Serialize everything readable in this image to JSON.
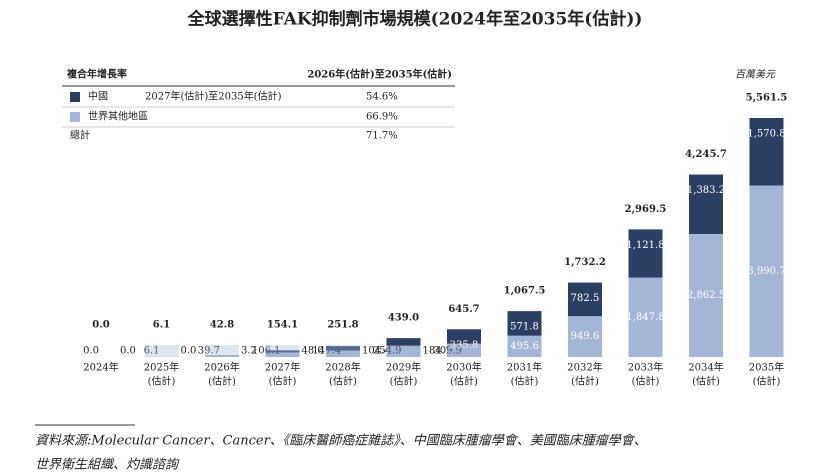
{
  "chart_data": {
    "type": "stacked_bar",
    "title": "全球選擇性FAK抑制劑市場規模(2024年至2035年(估計))",
    "unit": "百萬美元",
    "categories": [
      [
        "2024年"
      ],
      [
        "2025年",
        "(估計)"
      ],
      [
        "2026年",
        "(估計)"
      ],
      [
        "2027年",
        "(估計)"
      ],
      [
        "2028年",
        "(估計)"
      ],
      [
        "2029年",
        "(估計)"
      ],
      [
        "2030年",
        "(估計)"
      ],
      [
        "2031年",
        "(估計)"
      ],
      [
        "2032年",
        "(估計)"
      ],
      [
        "2033年",
        "(估計)"
      ],
      [
        "2034年",
        "(估計)"
      ],
      [
        "2035年",
        "(估計)"
      ]
    ],
    "series": [
      {
        "name": "世界其他地區",
        "color": "#a3b6d7",
        "values": [
          0.0,
          6.1,
          39.7,
          106.1,
          147.4,
          254.9,
          309.9,
          495.6,
          949.6,
          1847.8,
          2862.5,
          3990.7
        ],
        "value_labels": [
          "0.0",
          "6.1",
          "39.7",
          "106.1",
          "147.4",
          "254.9",
          "309.9",
          "495.6",
          "949.6",
          "1,847.8",
          "2,862.5",
          "3,990.7"
        ]
      },
      {
        "name": "中國",
        "color": "#2b3e64",
        "values": [
          0.0,
          0.0,
          3.2,
          48.0,
          104.4,
          184.1,
          335.8,
          571.8,
          782.5,
          1121.8,
          1383.2,
          1570.8
        ],
        "value_labels": [
          "0.0",
          "0.0",
          "3.2",
          "48.0",
          "104.4",
          "184.1",
          "335.8",
          "571.8",
          "782.5",
          "1,121.8",
          "1,383.2",
          "1,570.8"
        ]
      }
    ],
    "totals": [
      0.0,
      6.1,
      42.8,
      154.1,
      251.8,
      439.0,
      645.7,
      1067.5,
      1732.2,
      2969.5,
      4245.7,
      5561.5
    ],
    "total_labels": [
      "0.0",
      "6.1",
      "42.8",
      "154.1",
      "251.8",
      "439.0",
      "645.7",
      "1,067.5",
      "1,732.2",
      "2,969.5",
      "4,245.7",
      "5,561.5"
    ]
  },
  "cagr_table": {
    "header": [
      "複合年增長率",
      "2026年(估計)至2035年(估計)"
    ],
    "rows": [
      [
        "2027年(估計)至2035年(估計)",
        "54.6%"
      ],
      [
        "66.9%"
      ]
    ],
    "total": [
      "總計",
      "71.7%"
    ]
  },
  "source": [
    "資料來源:Molecular Cancer、Cancer、《臨床醫師癌症雜誌》、中國臨床腫瘤學會、美國臨床腫瘤學會、",
    "世界衛生組織、灼識諮詢"
  ]
}
